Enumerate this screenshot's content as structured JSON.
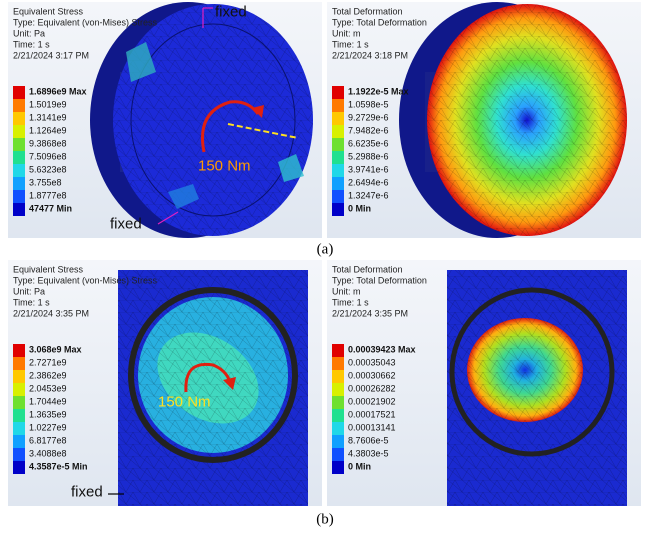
{
  "panels": [
    {
      "caption": "(a)",
      "views": [
        {
          "info": [
            "Equivalent Stress",
            "Type: Equivalent (von-Mises) Stress",
            "Unit: Pa",
            "Time: 1 s",
            "2/21/2024 3:17 PM"
          ],
          "legend": [
            "1.6896e9 Max",
            "1.5019e9",
            "1.3141e9",
            "1.1264e9",
            "9.3868e8",
            "7.5096e8",
            "5.6323e8",
            "3.755e8",
            "1.8777e8",
            "47477 Min"
          ],
          "annotations": [
            "fixed",
            "fixed",
            "150 Nm"
          ]
        },
        {
          "info": [
            "Total Deformation",
            "Type: Total Deformation",
            "Unit: m",
            "Time: 1 s",
            "2/21/2024 3:18 PM"
          ],
          "legend": [
            "1.1922e-5 Max",
            "1.0598e-5",
            "9.2729e-6",
            "7.9482e-6",
            "6.6235e-6",
            "5.2988e-6",
            "3.9741e-6",
            "2.6494e-6",
            "1.3247e-6",
            "0 Min"
          ],
          "annotations": []
        }
      ]
    },
    {
      "caption": "(b)",
      "views": [
        {
          "info": [
            "Equivalent Stress",
            "Type: Equivalent (von-Mises) Stress",
            "Unit: Pa",
            "Time: 1 s",
            "2/21/2024 3:35 PM"
          ],
          "legend": [
            "3.068e9 Max",
            "2.7271e9",
            "2.3862e9",
            "2.0453e9",
            "1.7044e9",
            "1.3635e9",
            "1.0227e9",
            "6.8177e8",
            "3.4088e8",
            "4.3587e-5 Min"
          ],
          "annotations": [
            "150 Nm",
            "fixed"
          ]
        },
        {
          "info": [
            "Total Deformation",
            "Type: Total Deformation",
            "Unit: m",
            "Time: 1 s",
            "2/21/2024 3:35 PM"
          ],
          "legend": [
            "0.00039423 Max",
            "0.00035043",
            "0.00030662",
            "0.00026282",
            "0.00021902",
            "0.00017521",
            "0.00013141",
            "8.7606e-5",
            "4.3803e-5",
            "0 Min"
          ],
          "annotations": []
        }
      ]
    }
  ]
}
